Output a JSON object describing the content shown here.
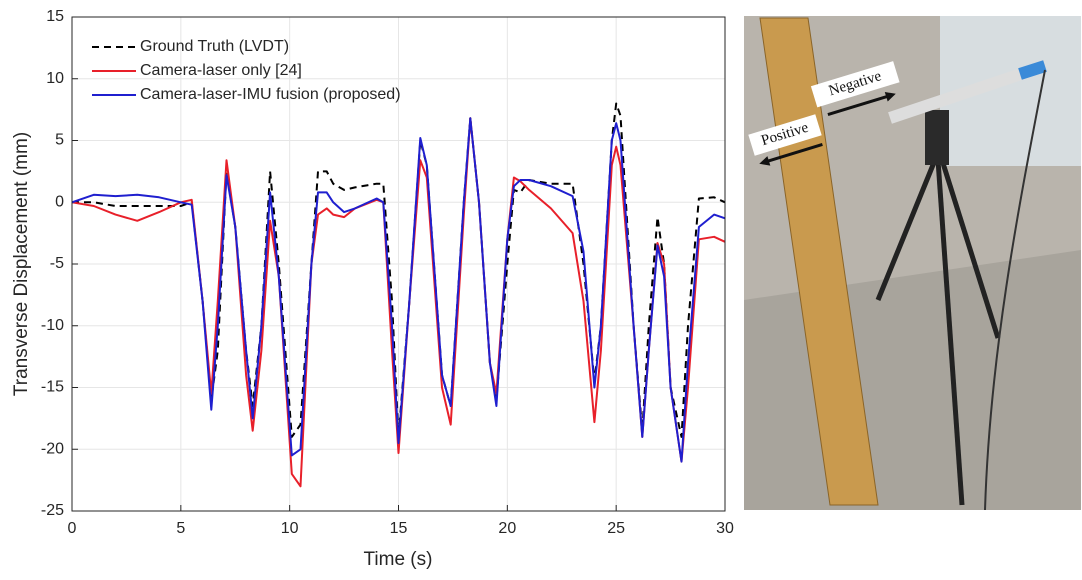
{
  "chart_data": {
    "type": "line",
    "x_label": "Time (s)",
    "y_label": "Transverse Displacement (mm)",
    "x": [
      0,
      1,
      2,
      3,
      4,
      5,
      5.5,
      6,
      6.4,
      6.7,
      7.1,
      7.5,
      8,
      8.3,
      8.7,
      9.1,
      9.5,
      10.1,
      10.5,
      11,
      11.3,
      11.7,
      12,
      12.5,
      13,
      14,
      14.3,
      14.7,
      15,
      15.5,
      16,
      16.3,
      17,
      17.4,
      18,
      18.3,
      18.7,
      19.2,
      19.5,
      20,
      20.3,
      20.6,
      21,
      22,
      23,
      23.5,
      24,
      24.3,
      24.8,
      25,
      25.2,
      25.8,
      26.2,
      26.5,
      26.9,
      27.2,
      27.5,
      28,
      28.3,
      28.8,
      29.5,
      30
    ],
    "series": [
      {
        "name": "Ground Truth (LVDT)",
        "color": "#000000",
        "dashed": true,
        "values": [
          0,
          0,
          -0.3,
          -0.3,
          -0.3,
          -0.3,
          0,
          -8,
          -16,
          -12,
          2.5,
          -2,
          -12,
          -16.5,
          -10,
          2.5,
          -5,
          -19,
          -18,
          -5,
          2.5,
          2.5,
          1.5,
          1,
          1.2,
          1.5,
          1.5,
          -8,
          -19,
          -8,
          5,
          3,
          -14,
          -16.5,
          0,
          6.8,
          0,
          -13,
          -16,
          -5,
          1,
          0.8,
          1.8,
          1.5,
          1.5,
          -5,
          -14.5,
          -10,
          5,
          8,
          7,
          -10,
          -18.5,
          -10,
          -1.2,
          -5,
          -15,
          -19,
          -10,
          0.3,
          0.4,
          0
        ]
      },
      {
        "name": "Camera-laser only [24]",
        "color": "#e8202a",
        "dashed": false,
        "values": [
          0,
          -0.3,
          -1,
          -1.5,
          -0.8,
          0,
          0.2,
          -8,
          -15.5,
          -8,
          3.4,
          -2,
          -14,
          -18.5,
          -12,
          -1.5,
          -6,
          -22,
          -23,
          -5,
          -1,
          -0.5,
          -1,
          -1.2,
          -0.5,
          0.2,
          0,
          -12,
          -20.3,
          -8,
          3.4,
          2,
          -15,
          -18,
          -1,
          6.8,
          0,
          -13,
          -15.5,
          -3,
          2,
          1.7,
          1,
          -0.5,
          -2.5,
          -8,
          -17.8,
          -12,
          3,
          4.5,
          3,
          -10,
          -19,
          -12,
          -3.3,
          -5,
          -15,
          -21,
          -15,
          -3,
          -2.8,
          -3.2
        ]
      },
      {
        "name": "Camera-laser-IMU fusion (proposed)",
        "color": "#1f1fcf",
        "dashed": false,
        "values": [
          0,
          0.6,
          0.5,
          0.6,
          0.4,
          0,
          -0.2,
          -8,
          -16.8,
          -10,
          2.2,
          -2,
          -12,
          -17.5,
          -10,
          0.8,
          -6,
          -20.5,
          -20,
          -5,
          0.8,
          0.8,
          0,
          -0.8,
          -0.5,
          0.3,
          0,
          -10,
          -19.5,
          -8,
          5.2,
          3,
          -14,
          -16.5,
          0,
          6.8,
          0,
          -13,
          -16.5,
          -3,
          1.3,
          1.8,
          1.8,
          1.3,
          0.5,
          -4,
          -15,
          -10,
          5,
          6.4,
          5,
          -10,
          -19,
          -12,
          -3.5,
          -6,
          -15,
          -21,
          -13,
          -2,
          -1,
          -1.3
        ]
      }
    ],
    "xlim": [
      0,
      30
    ],
    "xticks": [
      0,
      5,
      10,
      15,
      20,
      25,
      30
    ],
    "ylim": [
      -25,
      15
    ],
    "yticks": [
      -25,
      -20,
      -15,
      -10,
      -5,
      0,
      5,
      10,
      15
    ],
    "grid": true,
    "legend": "upper left"
  },
  "photo": {
    "labels": [
      "Positive",
      "Negative"
    ]
  }
}
